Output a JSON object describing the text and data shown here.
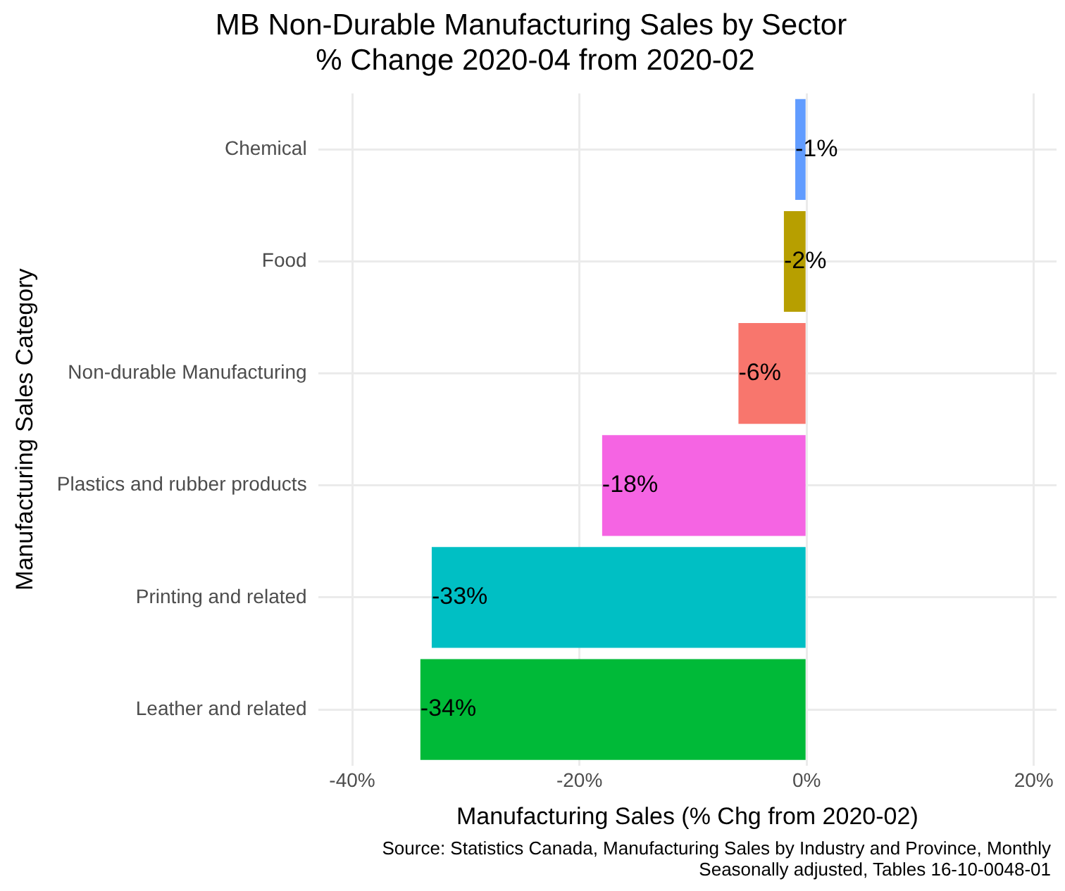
{
  "chart_data": {
    "type": "bar",
    "orientation": "horizontal",
    "title": "MB Non-Durable Manufacturing Sales by Sector\n % Change 2020-04 from 2020-02",
    "xlabel": "Manufacturing Sales (% Chg from 2020-02)",
    "ylabel": "Manufacturing Sales Category",
    "categories": [
      "Chemical",
      "Food",
      "Non-durable Manufacturing",
      "Plastics and rubber products",
      "Printing and related",
      "Leather and related"
    ],
    "values": [
      -1,
      -2,
      -6,
      -18,
      -33,
      -34
    ],
    "colors": [
      "#619cff",
      "#b79f00",
      "#f8766d",
      "#f564e3",
      "#00bfc4",
      "#00ba38"
    ],
    "value_labels": [
      "-1%",
      "-2%",
      "-6%",
      "-18%",
      "-33%",
      "-34%"
    ],
    "xlim": [
      -43,
      22
    ],
    "xticks": [
      {
        "value": -40,
        "label": "-40%"
      },
      {
        "value": -20,
        "label": "-20%"
      },
      {
        "value": 0,
        "label": "0%"
      },
      {
        "value": 20,
        "label": "20%"
      }
    ],
    "grid": true,
    "annotations": [
      "Source: Statistics Canada, Manufacturing Sales by Industry and Province, Monthly",
      "Seasonally adjusted, Tables 16-10-0048-01"
    ]
  }
}
